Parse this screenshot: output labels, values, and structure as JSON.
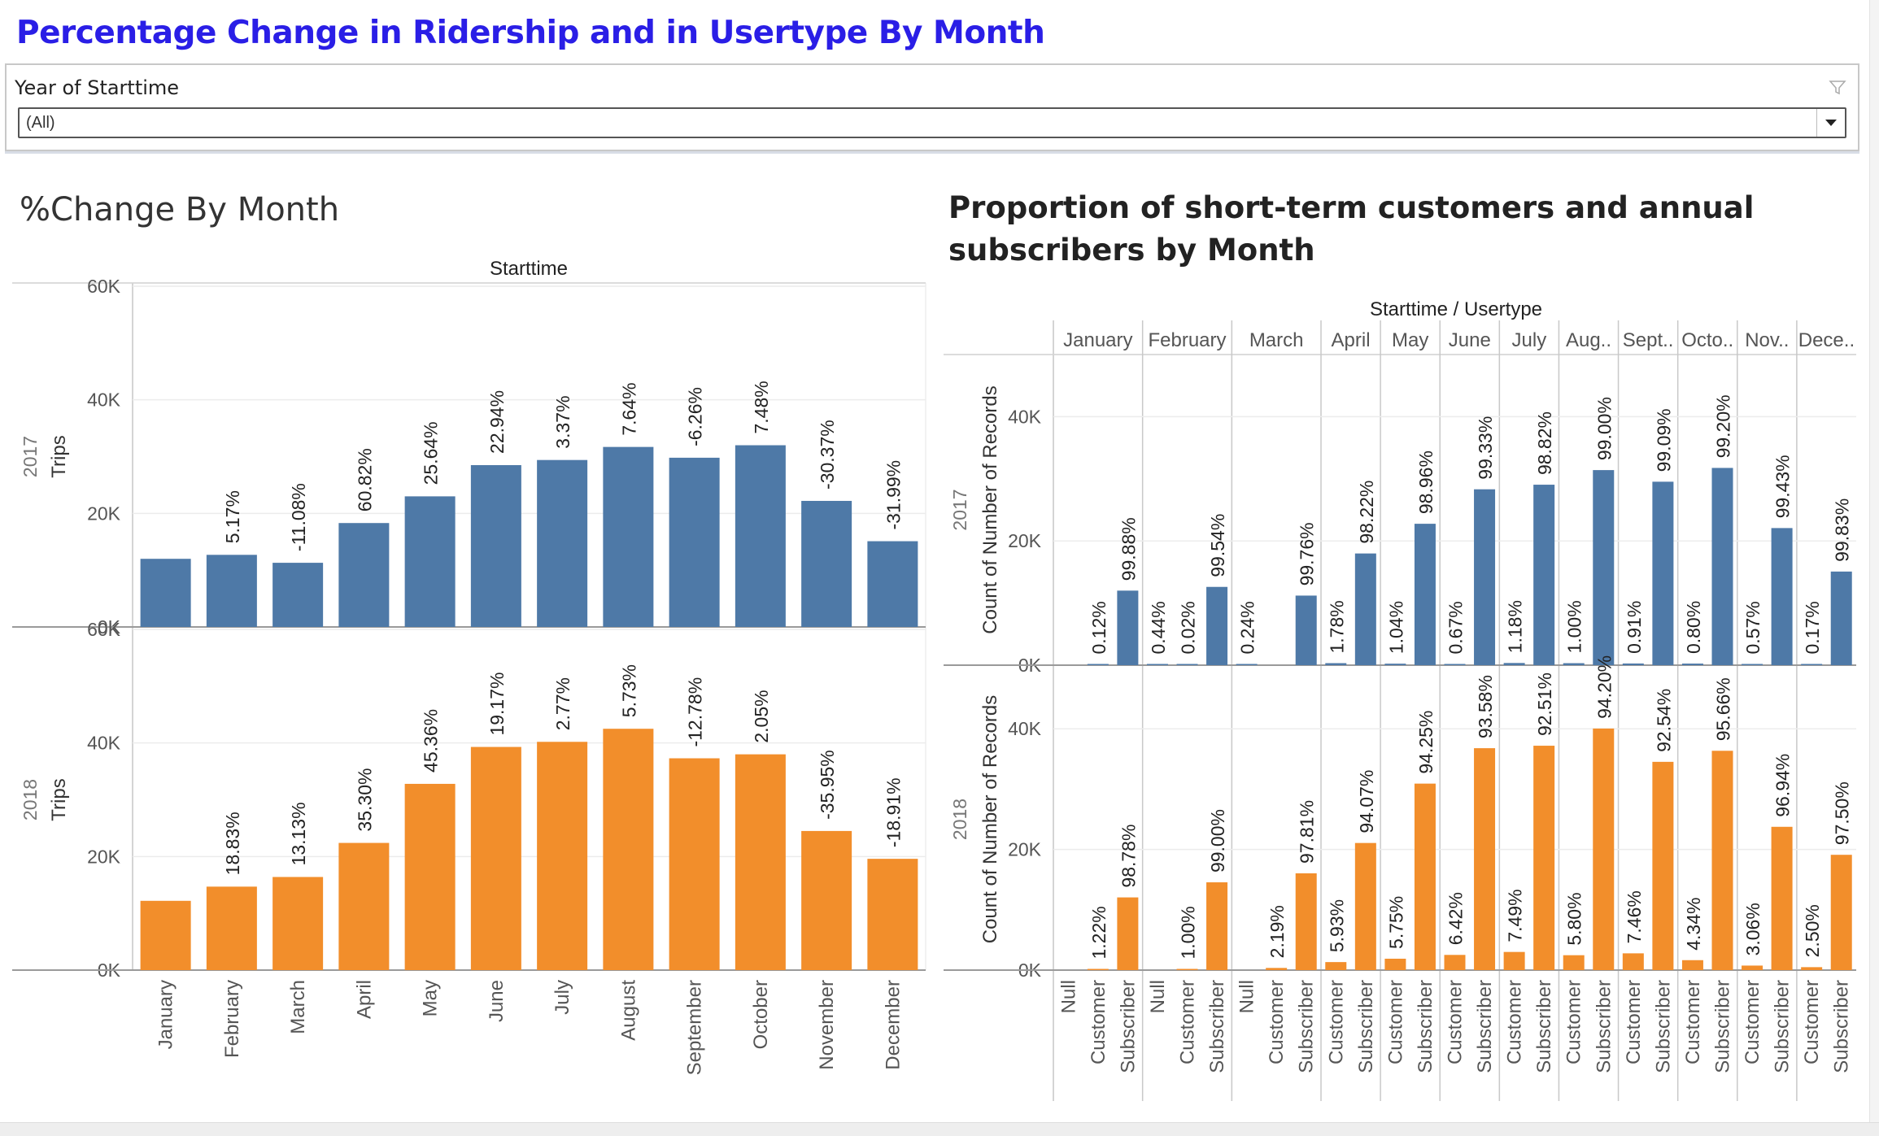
{
  "dashboard_title": "Percentage Change in Ridership and in Usertype By Month",
  "filter": {
    "label": "Year of Starttime",
    "value": "(All)",
    "icons": {
      "funnel": "funnel-icon",
      "dropdown": "chevron-down-icon"
    }
  },
  "left_title": "%Change By Month",
  "right_title": "Proportion of short-term customers and annual subscribers by Month",
  "chart_data": [
    {
      "type": "bar",
      "title": "%Change By Month",
      "column_header": "Starttime",
      "ylabel": "Trips",
      "ylim": [
        0,
        60000
      ],
      "yticks": [
        {
          "v": 0,
          "t": "0K"
        },
        {
          "v": 20000,
          "t": "20K"
        },
        {
          "v": 40000,
          "t": "40K"
        },
        {
          "v": 60000,
          "t": "60K"
        }
      ],
      "categories": [
        "January",
        "February",
        "March",
        "April",
        "May",
        "June",
        "July",
        "August",
        "September",
        "October",
        "November",
        "December"
      ],
      "series": [
        {
          "name": "2017",
          "color": "#4e79a7",
          "values": [
            12000,
            12700,
            11300,
            18300,
            23000,
            28500,
            29400,
            31700,
            29800,
            32000,
            22200,
            15100
          ],
          "labels": [
            "",
            "5.17%",
            "-11.08%",
            "60.82%",
            "25.64%",
            "22.94%",
            "3.37%",
            "7.64%",
            "-6.26%",
            "7.48%",
            "-30.37%",
            "-31.99%"
          ]
        },
        {
          "name": "2018",
          "color": "#f28e2b",
          "values": [
            12200,
            14700,
            16400,
            22400,
            32800,
            39300,
            40200,
            42500,
            37300,
            38000,
            24500,
            19600
          ],
          "labels": [
            "",
            "18.83%",
            "13.13%",
            "35.30%",
            "45.36%",
            "19.17%",
            "2.77%",
            "5.73%",
            "-12.78%",
            "2.05%",
            "-35.95%",
            "-18.91%"
          ]
        }
      ]
    },
    {
      "type": "bar",
      "title": "Proportion of short-term customers and annual subscribers by Month",
      "column_header": "Starttime / Usertype",
      "ylabel": "Count of Number of Records",
      "ylim": [
        0,
        50000
      ],
      "yticks": [
        {
          "v": 0,
          "t": "0K"
        },
        {
          "v": 20000,
          "t": "20K"
        },
        {
          "v": 40000,
          "t": "40K"
        }
      ],
      "months": [
        "January",
        "February",
        "March",
        "April",
        "May",
        "June",
        "July",
        "Aug..",
        "Sept..",
        "Octo..",
        "Nov..",
        "Dece.."
      ],
      "usertypes": [
        "Null",
        "Customer",
        "Subscriber"
      ],
      "columns": [
        {
          "month": 0,
          "type": "Customer"
        },
        {
          "month": 0,
          "type": "Subscriber"
        },
        {
          "month": 1,
          "type": "Null"
        },
        {
          "month": 1,
          "type": "Customer"
        },
        {
          "month": 1,
          "type": "Subscriber"
        },
        {
          "month": 2,
          "type": "Null"
        },
        {
          "month": 2,
          "type": "Customer"
        },
        {
          "month": 2,
          "type": "Subscriber"
        },
        {
          "month": 3,
          "type": "Customer"
        },
        {
          "month": 3,
          "type": "Subscriber"
        },
        {
          "month": 4,
          "type": "Customer"
        },
        {
          "month": 4,
          "type": "Subscriber"
        },
        {
          "month": 5,
          "type": "Customer"
        },
        {
          "month": 5,
          "type": "Subscriber"
        },
        {
          "month": 6,
          "type": "Customer"
        },
        {
          "month": 6,
          "type": "Subscriber"
        },
        {
          "month": 7,
          "type": "Customer"
        },
        {
          "month": 7,
          "type": "Subscriber"
        },
        {
          "month": 8,
          "type": "Customer"
        },
        {
          "month": 8,
          "type": "Subscriber"
        },
        {
          "month": 9,
          "type": "Customer"
        },
        {
          "month": 9,
          "type": "Subscriber"
        },
        {
          "month": 10,
          "type": "Customer"
        },
        {
          "month": 10,
          "type": "Subscriber"
        },
        {
          "month": 11,
          "type": "Customer"
        },
        {
          "month": 11,
          "type": "Subscriber"
        }
      ],
      "series": [
        {
          "name": "2017",
          "color": "#4e79a7",
          "values": [
            {
              "v": 14,
              "l": "0.12%"
            },
            {
              "v": 12000,
              "l": "99.88%"
            },
            {
              "v": 56,
              "l": "0.44%"
            },
            {
              "v": 3,
              "l": "0.02%"
            },
            {
              "v": 12600,
              "l": "99.54%"
            },
            {
              "v": 27,
              "l": "0.24%"
            },
            null,
            {
              "v": 11200,
              "l": "99.76%"
            },
            {
              "v": 325,
              "l": "1.78%"
            },
            {
              "v": 17980,
              "l": "98.22%"
            },
            {
              "v": 240,
              "l": "1.04%"
            },
            {
              "v": 22760,
              "l": "98.96%"
            },
            {
              "v": 190,
              "l": "0.67%"
            },
            {
              "v": 28310,
              "l": "99.33%"
            },
            {
              "v": 350,
              "l": "1.18%"
            },
            {
              "v": 29050,
              "l": "98.82%"
            },
            {
              "v": 320,
              "l": "1.00%"
            },
            {
              "v": 31400,
              "l": "99.00%"
            },
            {
              "v": 270,
              "l": "0.91%"
            },
            {
              "v": 29530,
              "l": "99.09%"
            },
            {
              "v": 255,
              "l": "0.80%"
            },
            {
              "v": 31750,
              "l": "99.20%"
            },
            {
              "v": 125,
              "l": "0.57%"
            },
            {
              "v": 22070,
              "l": "99.43%"
            },
            {
              "v": 25,
              "l": "0.17%"
            },
            {
              "v": 15070,
              "l": "99.83%"
            }
          ]
        },
        {
          "name": "2018",
          "color": "#f28e2b",
          "values": [
            {
              "v": 150,
              "l": "1.22%"
            },
            {
              "v": 12050,
              "l": "98.78%"
            },
            null,
            {
              "v": 147,
              "l": "1.00%"
            },
            {
              "v": 14550,
              "l": "99.00%"
            },
            null,
            {
              "v": 360,
              "l": "2.19%"
            },
            {
              "v": 16040,
              "l": "97.81%"
            },
            {
              "v": 1330,
              "l": "5.93%"
            },
            {
              "v": 21070,
              "l": "94.07%"
            },
            {
              "v": 1890,
              "l": "5.75%"
            },
            {
              "v": 30910,
              "l": "94.25%"
            },
            {
              "v": 2520,
              "l": "6.42%"
            },
            {
              "v": 36780,
              "l": "93.58%"
            },
            {
              "v": 3010,
              "l": "7.49%"
            },
            {
              "v": 37190,
              "l": "92.51%"
            },
            {
              "v": 2470,
              "l": "5.80%"
            },
            {
              "v": 40040,
              "l": "94.20%"
            },
            {
              "v": 2780,
              "l": "7.46%"
            },
            {
              "v": 34520,
              "l": "92.54%"
            },
            {
              "v": 1650,
              "l": "4.34%"
            },
            {
              "v": 36350,
              "l": "95.66%"
            },
            {
              "v": 750,
              "l": "3.06%"
            },
            {
              "v": 23750,
              "l": "96.94%"
            },
            {
              "v": 490,
              "l": "2.50%"
            },
            {
              "v": 19110,
              "l": "97.50%"
            }
          ]
        }
      ]
    }
  ]
}
